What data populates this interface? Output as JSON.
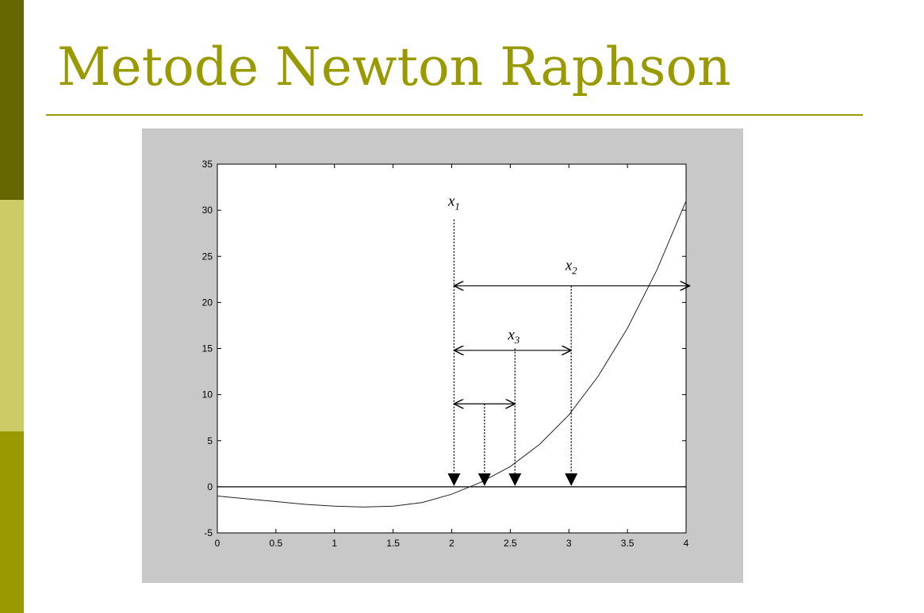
{
  "slide": {
    "title": "Metode Newton Raphson",
    "colors": {
      "accent": "#999900",
      "bar_dark": "#666600",
      "bar_light": "#cccc66",
      "bar_mid": "#999900",
      "figure_background": "#c8c8c8"
    }
  },
  "chart_data": {
    "type": "line",
    "title": "",
    "xlabel": "",
    "ylabel": "",
    "xlim": [
      0,
      4
    ],
    "ylim": [
      -5,
      35
    ],
    "xticks": [
      "0",
      "0.5",
      "1",
      "1.5",
      "2",
      "2.5",
      "3",
      "3.5",
      "4"
    ],
    "yticks": [
      "-5",
      "0",
      "5",
      "10",
      "15",
      "20",
      "25",
      "30",
      "35"
    ],
    "grid": false,
    "series": [
      {
        "x": [
          0,
          0.25,
          0.5,
          0.75,
          1.0,
          1.25,
          1.5,
          1.75,
          2.0,
          2.25,
          2.5,
          2.75,
          3.0,
          3.25,
          3.5,
          3.75,
          4.0
        ],
        "y": [
          -1.0,
          -1.3,
          -1.6,
          -1.9,
          -2.1,
          -2.2,
          -2.1,
          -1.7,
          -0.8,
          0.5,
          2.2,
          4.6,
          7.8,
          12.0,
          17.2,
          23.5,
          31.0
        ]
      }
    ],
    "zero_line": 0,
    "annotations": [
      {
        "label": "x1",
        "text_base": "x",
        "text_sub": "1",
        "x": 2.02,
        "y": 30.5
      },
      {
        "label": "x2",
        "text_base": "x",
        "text_sub": "2",
        "x": 3.02,
        "y": 23.5
      },
      {
        "label": "x3",
        "text_base": "x",
        "text_sub": "3",
        "x": 2.53,
        "y": 16.0
      }
    ],
    "vertical_drops": [
      {
        "x": 2.02,
        "from_y": 29.0
      },
      {
        "x": 2.28,
        "from_y": 9.0
      },
      {
        "x": 2.54,
        "from_y": 15.0
      },
      {
        "x": 3.02,
        "from_y": 21.8
      }
    ],
    "horizontal_spans": [
      {
        "from_x": 2.02,
        "to_x": 4.03,
        "y": 21.8
      },
      {
        "from_x": 2.02,
        "to_x": 3.02,
        "y": 14.8
      },
      {
        "from_x": 2.02,
        "to_x": 2.54,
        "y": 9.0
      }
    ]
  }
}
